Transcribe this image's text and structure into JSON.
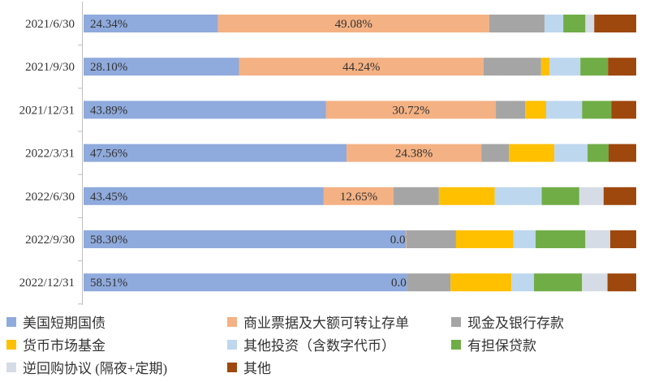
{
  "chart_data": {
    "type": "bar",
    "orientation": "horizontal",
    "stacked": "percent",
    "categories": [
      "2021/6/30",
      "2021/9/30",
      "2021/12/31",
      "2022/3/31",
      "2022/6/30",
      "2022/9/30",
      "2022/12/31"
    ],
    "series": [
      {
        "name": "美国短期国债",
        "color": "#8faadc",
        "values": [
          24.34,
          28.1,
          43.89,
          47.56,
          43.45,
          58.3,
          58.51
        ],
        "labels": [
          "24.34%",
          "28.10%",
          "43.89%",
          "47.56%",
          "43.45%",
          "58.30%",
          "58.51%"
        ]
      },
      {
        "name": "商业票据及大额可转让存单",
        "color": "#f4b183",
        "values": [
          49.08,
          44.24,
          30.72,
          24.38,
          12.65,
          0.07,
          0.0
        ],
        "labels": [
          "49.08%",
          "44.24%",
          "30.72%",
          "24.38%",
          "12.65%",
          "0.07%",
          "0.00%"
        ]
      },
      {
        "name": "现金及银行存款",
        "color": "#a5a5a5",
        "values": [
          10.0,
          10.4,
          5.3,
          5.0,
          8.2,
          9.0,
          7.9
        ]
      },
      {
        "name": "货币市场基金",
        "color": "#ffc000",
        "values": [
          0,
          1.5,
          3.8,
          8.2,
          10.1,
          10.4,
          11.0
        ]
      },
      {
        "name": "其他投资（含数字代币）",
        "color": "#bdd7ee",
        "values": [
          3.4,
          5.6,
          6.5,
          6.0,
          8.5,
          4.0,
          4.1
        ]
      },
      {
        "name": "有担保贷款",
        "color": "#70ad47",
        "values": [
          4.0,
          5.0,
          5.3,
          3.8,
          6.8,
          9.0,
          8.7
        ]
      },
      {
        "name": "逆回购协议 (隔夜+定期)",
        "color": "#d6dce5",
        "values": [
          1.6,
          0,
          0,
          0,
          4.4,
          4.5,
          4.6
        ]
      },
      {
        "name": "其他",
        "color": "#9e480e",
        "values": [
          7.6,
          5.1,
          4.5,
          5.0,
          5.9,
          4.7,
          5.2
        ]
      }
    ],
    "xlim": [
      0,
      100
    ],
    "legend": "bottom",
    "grid": false
  }
}
